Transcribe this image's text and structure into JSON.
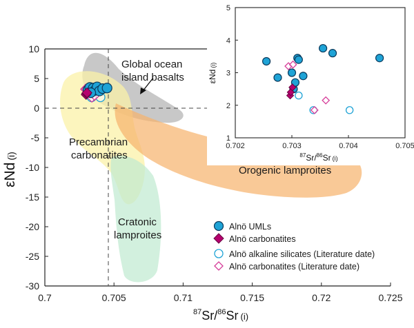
{
  "chart_data": [
    {
      "type": "scatter",
      "xlim": [
        0.7,
        0.725
      ],
      "ylim": [
        -30,
        10
      ],
      "x_ticks": [
        "0.7",
        "0.705",
        "0.71",
        "0.715",
        "0.72",
        "0.725"
      ],
      "y_ticks": [
        "10",
        "5",
        "0",
        "-5",
        "-10",
        "-15",
        "-20",
        "-25",
        "-30"
      ],
      "xlabel": {
        "pre": "87",
        "mid": "Sr/",
        "pre2": "86",
        "main": "Sr",
        "sub": "(i)"
      },
      "ylabel": {
        "main": "εNd",
        "sub": "(i)"
      },
      "reference_lines": {
        "x": 0.7045,
        "y": 0
      },
      "fields": [
        {
          "name": "Global ocean island basalts",
          "color": "#9a9a9a",
          "line1": "Global ocean",
          "line2": "island basalts"
        },
        {
          "name": "Precambrian carbonatites",
          "color": "#fbf2a8",
          "line1": "Precambrian",
          "line2": "carbonatites"
        },
        {
          "name": "Orogenic lamproites",
          "color": "#f6b26b",
          "line1": "Orogenic lamproites"
        },
        {
          "name": "Cratonic lamproites",
          "color": "#bfead0",
          "line1": "Cratonic",
          "line2": "lamproites"
        }
      ],
      "series": [
        {
          "name": "Alnö UMLs",
          "marker": "circle-filled",
          "color": "#1fa3d6",
          "x": [
            0.70312,
            0.70325,
            0.70338,
            0.7035,
            0.70362,
            0.70378,
            0.70395,
            0.70418,
            0.7045,
            0.70332
          ],
          "y": [
            3.1,
            3.5,
            2.8,
            3.4,
            3.0,
            3.6,
            2.9,
            3.3,
            3.4,
            2.6
          ]
        },
        {
          "name": "Alnö carbonatites",
          "marker": "diamond-filled",
          "color": "#b5006e",
          "x": [
            0.70298,
            0.70302,
            0.70305
          ],
          "y": [
            2.3,
            2.5,
            2.6
          ]
        },
        {
          "name": "Alnö alkaline silicates (Literature date)",
          "marker": "circle-open",
          "color": "#1fa3d6",
          "x": [
            0.70312,
            0.70338,
            0.70402
          ],
          "y": [
            2.3,
            1.85,
            1.85
          ]
        },
        {
          "name": "Alnö carbonatites (Literature date)",
          "marker": "diamond-open",
          "color": "#d63c99",
          "x": [
            0.70294,
            0.70302,
            0.7034,
            0.7036
          ],
          "y": [
            3.2,
            3.25,
            1.85,
            2.15
          ]
        }
      ],
      "legend_position": "bottom-right",
      "annotation": "arrow pointing to ocean island basalt field"
    },
    {
      "type": "scatter",
      "role": "inset",
      "xlim": [
        0.702,
        0.705
      ],
      "ylim": [
        1,
        5
      ],
      "x_ticks": [
        "0.702",
        "0.703",
        "0.704",
        "0.705"
      ],
      "y_ticks": [
        "1",
        "2",
        "3",
        "4",
        "5"
      ],
      "xlabel": {
        "pre": "87",
        "mid": "Sr/",
        "pre2": "86",
        "main": "Sr",
        "sub": "(i)"
      },
      "ylabel": {
        "main": "εNd",
        "sub": "(i)"
      },
      "series": [
        {
          "name": "Alnö UMLs",
          "marker": "circle-filled",
          "color": "#1fa3d6",
          "x": [
            0.70255,
            0.70275,
            0.703,
            0.70303,
            0.70306,
            0.7031,
            0.70312,
            0.7032,
            0.70355,
            0.70372,
            0.70455
          ],
          "y": [
            3.35,
            2.85,
            3.0,
            2.5,
            2.7,
            3.45,
            3.4,
            2.9,
            3.75,
            3.6,
            3.45
          ]
        },
        {
          "name": "Alnö carbonatites",
          "marker": "diamond-filled",
          "color": "#b5006e",
          "x": [
            0.70297,
            0.70298,
            0.70301
          ],
          "y": [
            2.3,
            2.4,
            2.55
          ]
        },
        {
          "name": "Alnö alkaline silicates (Literature date)",
          "marker": "circle-open",
          "color": "#1fa3d6",
          "x": [
            0.70312,
            0.70338,
            0.70402
          ],
          "y": [
            2.3,
            1.85,
            1.85
          ]
        },
        {
          "name": "Alnö carbonatites (Literature date)",
          "marker": "diamond-open",
          "color": "#d63c99",
          "x": [
            0.70294,
            0.70302,
            0.7034,
            0.7036
          ],
          "y": [
            3.2,
            3.25,
            1.85,
            2.15
          ]
        }
      ]
    }
  ]
}
